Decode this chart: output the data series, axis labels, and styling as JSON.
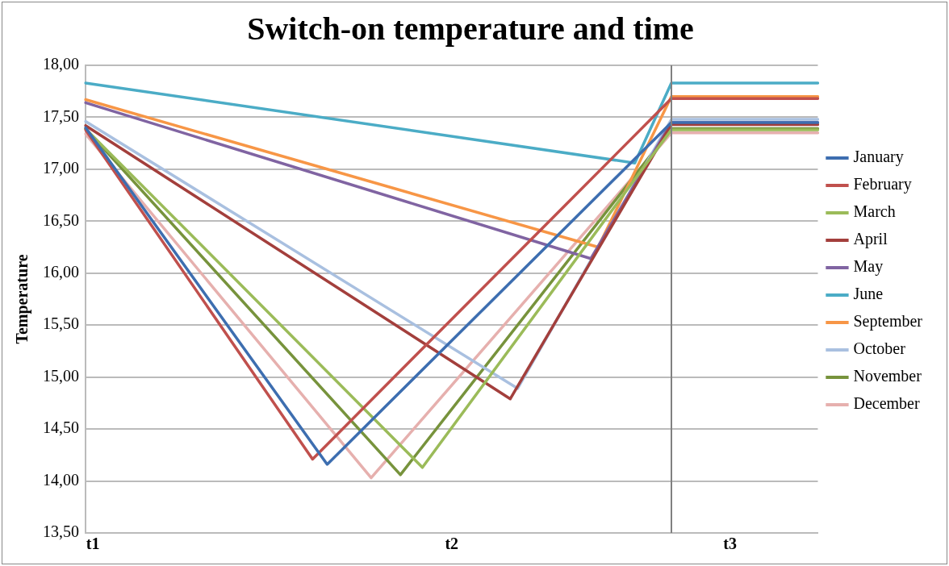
{
  "chart_data": {
    "type": "line",
    "title": "Switch-on temperature and time",
    "ylabel": "Temperature",
    "categories": [
      null,
      "t1",
      null,
      null,
      null,
      null,
      null,
      null,
      null,
      null,
      null,
      null,
      null,
      null,
      null,
      null,
      null,
      null,
      null,
      null,
      null,
      null,
      null,
      null,
      null,
      null,
      null,
      null,
      null,
      null,
      null,
      null,
      null,
      null,
      null,
      null,
      null,
      null,
      null,
      null,
      null,
      null,
      null,
      null,
      null,
      null,
      null,
      null,
      null,
      null,
      "t2",
      null,
      null,
      null,
      null,
      null,
      null,
      null,
      null,
      null,
      null,
      null,
      null,
      null,
      null,
      null,
      null,
      null,
      null,
      null,
      null,
      null,
      null,
      null,
      null,
      null,
      null,
      null,
      null,
      null,
      null,
      null,
      null,
      null,
      null,
      null,
      null,
      null,
      "t3",
      null,
      null,
      null,
      null,
      null,
      null,
      null,
      null,
      null,
      null,
      null,
      null
    ],
    "ylim": [
      13.5,
      18
    ],
    "yticks": [
      {
        "value": 13.5,
        "label": "13,50"
      },
      {
        "value": 14,
        "label": "14,00"
      },
      {
        "value": 14.5,
        "label": "14,50"
      },
      {
        "value": 15,
        "label": "15,00"
      },
      {
        "value": 15.5,
        "label": "15,50"
      },
      {
        "value": 16,
        "label": "16,00"
      },
      {
        "value": 16.5,
        "label": "16,50"
      },
      {
        "value": 17,
        "label": "17,00"
      },
      {
        "value": 17.5,
        "label": "17,50"
      },
      {
        "value": 18,
        "label": "18,00"
      }
    ],
    "grid": "y",
    "legend": "right",
    "marker": "none",
    "line_style": "solid",
    "series": [
      {
        "name": "January",
        "color": "#3d6eb0",
        "values": [
          17.4,
          null,
          null,
          null,
          null,
          null,
          null,
          null,
          null,
          null,
          null,
          null,
          null,
          null,
          null,
          null,
          null,
          null,
          null,
          null,
          null,
          null,
          null,
          null,
          null,
          null,
          null,
          null,
          null,
          null,
          null,
          null,
          null,
          14.16,
          null,
          null,
          null,
          null,
          null,
          null,
          null,
          null,
          null,
          null,
          null,
          null,
          null,
          null,
          null,
          null,
          null,
          null,
          null,
          null,
          null,
          null,
          null,
          null,
          null,
          null,
          null,
          null,
          null,
          null,
          null,
          null,
          null,
          null,
          null,
          null,
          null,
          null,
          null,
          null,
          null,
          null,
          null,
          null,
          null,
          null,
          17.45,
          null,
          null,
          null,
          null,
          null,
          null,
          null,
          null,
          null,
          null,
          null,
          null,
          null,
          null,
          null,
          null,
          null,
          null,
          null,
          17.45
        ]
      },
      {
        "name": "February",
        "color": "#c0504d",
        "values": [
          17.38,
          null,
          null,
          null,
          null,
          null,
          null,
          null,
          null,
          null,
          null,
          null,
          null,
          null,
          null,
          null,
          null,
          null,
          null,
          null,
          null,
          null,
          null,
          null,
          null,
          null,
          null,
          null,
          null,
          null,
          null,
          14.21,
          null,
          null,
          null,
          null,
          null,
          null,
          null,
          null,
          null,
          null,
          null,
          null,
          null,
          null,
          null,
          null,
          null,
          null,
          null,
          null,
          null,
          null,
          null,
          null,
          null,
          null,
          null,
          null,
          null,
          null,
          null,
          null,
          null,
          null,
          null,
          null,
          null,
          null,
          null,
          null,
          null,
          null,
          null,
          null,
          null,
          null,
          null,
          null,
          17.68,
          null,
          null,
          null,
          null,
          null,
          null,
          null,
          null,
          null,
          null,
          null,
          null,
          null,
          null,
          null,
          null,
          null,
          null,
          null,
          17.68
        ]
      },
      {
        "name": "March",
        "color": "#9bbb59",
        "values": [
          17.39,
          null,
          null,
          null,
          null,
          null,
          null,
          null,
          null,
          null,
          null,
          null,
          null,
          null,
          null,
          null,
          null,
          null,
          null,
          null,
          null,
          null,
          null,
          null,
          null,
          null,
          null,
          null,
          null,
          null,
          null,
          null,
          null,
          null,
          null,
          null,
          null,
          null,
          null,
          null,
          null,
          null,
          null,
          null,
          null,
          null,
          14.13,
          null,
          null,
          null,
          null,
          null,
          null,
          null,
          null,
          null,
          null,
          null,
          null,
          null,
          null,
          null,
          null,
          null,
          null,
          null,
          null,
          null,
          null,
          null,
          null,
          null,
          null,
          null,
          null,
          null,
          null,
          null,
          null,
          null,
          17.38,
          null,
          null,
          null,
          null,
          null,
          null,
          null,
          null,
          null,
          null,
          null,
          null,
          null,
          null,
          null,
          null,
          null,
          null,
          null,
          17.38
        ]
      },
      {
        "name": "April",
        "color": "#a33f3c",
        "values": [
          17.42,
          null,
          null,
          null,
          null,
          null,
          null,
          null,
          null,
          null,
          null,
          null,
          null,
          null,
          null,
          null,
          null,
          null,
          null,
          null,
          null,
          null,
          null,
          null,
          null,
          null,
          null,
          null,
          null,
          null,
          null,
          null,
          null,
          null,
          null,
          null,
          null,
          null,
          null,
          null,
          null,
          null,
          null,
          null,
          null,
          null,
          null,
          null,
          null,
          null,
          null,
          null,
          null,
          null,
          null,
          null,
          null,
          null,
          14.79,
          null,
          null,
          null,
          null,
          null,
          null,
          null,
          null,
          null,
          null,
          null,
          null,
          null,
          null,
          null,
          null,
          null,
          null,
          null,
          null,
          null,
          17.43,
          null,
          null,
          null,
          null,
          null,
          null,
          null,
          null,
          null,
          null,
          null,
          null,
          null,
          null,
          null,
          null,
          null,
          null,
          null,
          17.43
        ]
      },
      {
        "name": "May",
        "color": "#8064a2",
        "values": [
          17.64,
          null,
          null,
          null,
          null,
          null,
          null,
          null,
          null,
          null,
          null,
          null,
          null,
          null,
          null,
          null,
          null,
          null,
          null,
          null,
          null,
          null,
          null,
          null,
          null,
          null,
          null,
          null,
          null,
          null,
          null,
          null,
          null,
          null,
          null,
          null,
          null,
          null,
          null,
          null,
          null,
          null,
          null,
          null,
          null,
          null,
          null,
          null,
          null,
          null,
          null,
          null,
          null,
          null,
          null,
          null,
          null,
          null,
          null,
          null,
          null,
          null,
          null,
          null,
          null,
          null,
          null,
          null,
          null,
          16.14,
          null,
          null,
          null,
          null,
          null,
          null,
          null,
          null,
          null,
          null,
          17.45,
          null,
          null,
          null,
          null,
          null,
          null,
          null,
          null,
          null,
          null,
          null,
          null,
          null,
          null,
          null,
          null,
          null,
          null,
          null,
          17.45
        ]
      },
      {
        "name": "June",
        "color": "#4bacc6",
        "values": [
          17.83,
          null,
          null,
          null,
          null,
          null,
          null,
          null,
          null,
          null,
          null,
          null,
          null,
          null,
          null,
          null,
          null,
          null,
          null,
          null,
          null,
          null,
          null,
          null,
          null,
          null,
          null,
          null,
          null,
          null,
          null,
          null,
          null,
          null,
          null,
          null,
          null,
          null,
          null,
          null,
          null,
          null,
          null,
          null,
          null,
          null,
          null,
          null,
          null,
          null,
          null,
          null,
          null,
          null,
          null,
          null,
          null,
          null,
          null,
          null,
          null,
          null,
          null,
          null,
          null,
          null,
          null,
          null,
          null,
          null,
          null,
          null,
          null,
          null,
          null,
          17.06,
          null,
          null,
          null,
          null,
          17.83,
          null,
          null,
          null,
          null,
          null,
          null,
          null,
          null,
          null,
          null,
          null,
          null,
          null,
          null,
          null,
          null,
          null,
          null,
          null,
          17.83
        ]
      },
      {
        "name": "September",
        "color": "#f79646",
        "values": [
          17.67,
          null,
          null,
          null,
          null,
          null,
          null,
          null,
          null,
          null,
          null,
          null,
          null,
          null,
          null,
          null,
          null,
          null,
          null,
          null,
          null,
          null,
          null,
          null,
          null,
          null,
          null,
          null,
          null,
          null,
          null,
          null,
          null,
          null,
          null,
          null,
          null,
          null,
          null,
          null,
          null,
          null,
          null,
          null,
          null,
          null,
          null,
          null,
          null,
          null,
          null,
          null,
          null,
          null,
          null,
          null,
          null,
          null,
          null,
          null,
          null,
          null,
          null,
          null,
          null,
          null,
          null,
          null,
          null,
          null,
          16.25,
          null,
          null,
          null,
          null,
          null,
          null,
          null,
          null,
          null,
          17.7,
          null,
          null,
          null,
          null,
          null,
          null,
          null,
          null,
          null,
          null,
          null,
          null,
          null,
          null,
          null,
          null,
          null,
          null,
          null,
          17.7
        ]
      },
      {
        "name": "October",
        "color": "#a9c0e0",
        "values": [
          17.46,
          null,
          null,
          null,
          null,
          null,
          null,
          null,
          null,
          null,
          null,
          null,
          null,
          null,
          null,
          null,
          null,
          null,
          null,
          null,
          null,
          null,
          null,
          null,
          null,
          null,
          null,
          null,
          null,
          null,
          null,
          null,
          null,
          null,
          null,
          null,
          null,
          null,
          null,
          null,
          null,
          null,
          null,
          null,
          null,
          null,
          null,
          null,
          null,
          null,
          null,
          null,
          null,
          null,
          null,
          null,
          null,
          null,
          null,
          14.89,
          null,
          null,
          null,
          null,
          null,
          null,
          null,
          null,
          null,
          null,
          null,
          null,
          null,
          null,
          null,
          null,
          null,
          null,
          null,
          null,
          17.48,
          null,
          null,
          null,
          null,
          null,
          null,
          null,
          null,
          null,
          null,
          null,
          null,
          null,
          null,
          null,
          null,
          null,
          null,
          null,
          17.48
        ]
      },
      {
        "name": "November",
        "color": "#77933c",
        "values": [
          17.39,
          null,
          null,
          null,
          null,
          null,
          null,
          null,
          null,
          null,
          null,
          null,
          null,
          null,
          null,
          null,
          null,
          null,
          null,
          null,
          null,
          null,
          null,
          null,
          null,
          null,
          null,
          null,
          null,
          null,
          null,
          null,
          null,
          null,
          null,
          null,
          null,
          null,
          null,
          null,
          null,
          null,
          null,
          14.06,
          null,
          null,
          null,
          null,
          null,
          null,
          null,
          null,
          null,
          null,
          null,
          null,
          null,
          null,
          null,
          null,
          null,
          null,
          null,
          null,
          null,
          null,
          null,
          null,
          null,
          null,
          null,
          null,
          null,
          null,
          null,
          null,
          null,
          null,
          null,
          null,
          17.39,
          null,
          null,
          null,
          null,
          null,
          null,
          null,
          null,
          null,
          null,
          null,
          null,
          null,
          null,
          null,
          null,
          null,
          null,
          null,
          17.39
        ]
      },
      {
        "name": "December",
        "color": "#e6b0ae",
        "values": [
          17.34,
          null,
          null,
          null,
          null,
          null,
          null,
          null,
          null,
          null,
          null,
          null,
          null,
          null,
          null,
          null,
          null,
          null,
          null,
          null,
          null,
          null,
          null,
          null,
          null,
          null,
          null,
          null,
          null,
          null,
          null,
          null,
          null,
          null,
          null,
          null,
          null,
          null,
          null,
          14.03,
          null,
          null,
          null,
          null,
          null,
          null,
          null,
          null,
          null,
          null,
          null,
          null,
          null,
          null,
          null,
          null,
          null,
          null,
          null,
          null,
          null,
          null,
          null,
          null,
          null,
          null,
          null,
          null,
          null,
          null,
          null,
          null,
          null,
          null,
          null,
          null,
          null,
          null,
          null,
          null,
          17.35,
          null,
          null,
          null,
          null,
          null,
          null,
          null,
          null,
          null,
          null,
          null,
          null,
          null,
          null,
          null,
          null,
          null,
          null,
          null,
          17.35
        ]
      }
    ]
  }
}
